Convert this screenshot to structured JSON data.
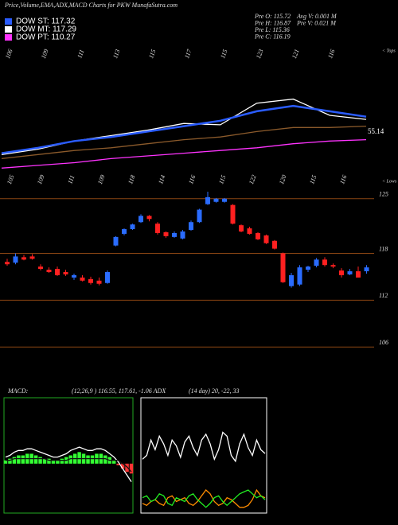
{
  "header": {
    "title": "Price,Volume,EMA,ADX,MACD Charts for PKW MunafaSutra.com",
    "legend": [
      {
        "label": "DOW ST: 117.32",
        "color": "#2a5cff"
      },
      {
        "label": "DOW MT: 117.29",
        "color": "#ffffff"
      },
      {
        "label": "DOW PT: 110.27",
        "color": "#ff33ff"
      }
    ],
    "info_left": [
      "Pre   O: 115.72",
      "Pre   H: 116.87",
      "Pre   L: 115.36",
      "Pre   C: 116.19"
    ],
    "info_right": [
      "Avg  V: 0.001 M",
      "Pre   V: 0.021 M"
    ]
  },
  "chart_data": [
    {
      "type": "line",
      "ylim": [
        0,
        100
      ],
      "series": [
        {
          "color": "#ff33ff",
          "values": [
            11,
            13,
            15,
            18,
            20,
            22,
            24,
            26,
            29,
            31,
            32
          ]
        },
        {
          "color": "#8b5a2b",
          "values": [
            18,
            21,
            24,
            26,
            29,
            32,
            34,
            38,
            41,
            41,
            42
          ]
        },
        {
          "color": "#ffffff",
          "values": [
            21,
            25,
            31,
            35,
            39,
            44,
            43,
            59,
            62,
            50,
            47
          ]
        },
        {
          "color": "#2a5cff",
          "values": [
            22,
            26,
            31,
            34,
            38,
            42,
            46,
            53,
            57,
            53,
            49
          ]
        }
      ],
      "top_labels": [
        106,
        109,
        111,
        113,
        115,
        117,
        115,
        123,
        121,
        116
      ],
      "bottom_labels": [
        105,
        109,
        111,
        109,
        118,
        114,
        116,
        115,
        122,
        120,
        115,
        116
      ],
      "tops_label": "< Tops",
      "lows_label": "< Lows",
      "annotation": "55.14"
    },
    {
      "type": "candlestick",
      "ylim": [
        105,
        126
      ],
      "yticks": [
        125,
        118,
        112,
        106
      ],
      "up_color": "#2a6cff",
      "down_color": "#ff2020",
      "grid_color": "#8b4513",
      "open": [
        116.9,
        116.8,
        117.5,
        117.6,
        116.3,
        115.9,
        116.0,
        115.6,
        114.9,
        114.9,
        114.7,
        114.5,
        114.2,
        119.0,
        120.5,
        121.1,
        122.0,
        122.8,
        121.8,
        120.7,
        120.1,
        119.9,
        121.0,
        122.0,
        124.3,
        124.6,
        124.6,
        124.2,
        121.6,
        121.2,
        120.6,
        120.3,
        119.6,
        118.0,
        113.8,
        114.0,
        115.9,
        116.4,
        117.2,
        116.5,
        115.8,
        115.3,
        115.7,
        115.7
      ],
      "high": [
        117.3,
        118.0,
        117.8,
        117.9,
        116.6,
        116.2,
        116.3,
        115.9,
        115.4,
        115.2,
        115.0,
        114.9,
        115.8,
        120.2,
        121.2,
        121.8,
        123.0,
        122.9,
        122.0,
        120.8,
        120.8,
        121.0,
        122.2,
        123.7,
        125.9,
        125.1,
        125.1,
        124.3,
        121.7,
        121.4,
        120.7,
        120.4,
        119.7,
        118.1,
        115.5,
        116.5,
        116.4,
        117.4,
        117.5,
        116.7,
        116.1,
        116.0,
        116.3,
        116.5
      ],
      "low": [
        116.4,
        116.6,
        117.1,
        117.2,
        115.8,
        115.5,
        115.1,
        115.1,
        114.6,
        114.4,
        114.0,
        113.9,
        114.1,
        118.9,
        120.3,
        121.0,
        121.9,
        122.1,
        120.4,
        120.0,
        120.0,
        119.8,
        120.9,
        121.9,
        124.2,
        124.5,
        124.5,
        121.7,
        120.7,
        120.4,
        119.7,
        119.2,
        118.5,
        114.2,
        113.6,
        113.8,
        115.6,
        116.2,
        116.3,
        116.1,
        114.9,
        115.2,
        114.9,
        115.4
      ],
      "close": [
        116.6,
        117.6,
        117.2,
        117.3,
        116.0,
        115.6,
        115.2,
        115.3,
        115.2,
        114.5,
        114.2,
        114.1,
        115.6,
        120.1,
        121.1,
        121.7,
        122.8,
        122.4,
        120.6,
        120.2,
        120.6,
        120.8,
        122.0,
        123.6,
        125.2,
        125.0,
        125.0,
        121.8,
        120.8,
        120.5,
        119.8,
        119.3,
        118.6,
        114.3,
        115.2,
        116.2,
        116.3,
        117.2,
        116.5,
        116.3,
        115.2,
        115.7,
        114.9,
        116.2
      ]
    },
    {
      "type": "macd",
      "title": "MACD:",
      "subtitle": "(12,26,9 ) 116.55, 117.61, -1.06 ADX",
      "ylim": [
        -3,
        4
      ],
      "frame_color": "#22aa22",
      "histogram": {
        "up_color": "#33ff33",
        "down_color": "#ff3333",
        "values": [
          0.2,
          0.3,
          0.4,
          0.5,
          0.5,
          0.6,
          0.6,
          0.5,
          0.4,
          0.3,
          0.3,
          0.2,
          0.2,
          0.3,
          0.4,
          0.5,
          0.6,
          0.7,
          0.6,
          0.5,
          0.5,
          0.6,
          0.6,
          0.5,
          0.4,
          0.2,
          -0.1,
          -0.3,
          -0.5,
          -0.6
        ]
      },
      "series": [
        {
          "color": "#ffffff",
          "values": [
            0.4,
            0.5,
            0.7,
            0.8,
            0.8,
            0.9,
            0.9,
            0.8,
            0.7,
            0.6,
            0.5,
            0.4,
            0.4,
            0.5,
            0.6,
            0.8,
            0.9,
            1.0,
            0.9,
            0.8,
            0.8,
            0.9,
            0.9,
            0.8,
            0.6,
            0.4,
            0.1,
            -0.3,
            -0.7,
            -1.1
          ]
        },
        {
          "color": "#111111",
          "values": [
            0.2,
            0.2,
            0.3,
            0.3,
            0.3,
            0.3,
            0.3,
            0.3,
            0.3,
            0.3,
            0.2,
            0.2,
            0.2,
            0.2,
            0.2,
            0.3,
            0.3,
            0.3,
            0.3,
            0.3,
            0.3,
            0.3,
            0.3,
            0.3,
            0.2,
            0.2,
            0.2,
            0,
            -0.2,
            -0.5
          ]
        }
      ]
    },
    {
      "type": "line",
      "title": "(14 day) 20, -22, 33",
      "ylim": [
        0,
        60
      ],
      "frame_color": "#ffffff",
      "series": [
        {
          "color": "#ffffff",
          "values": [
            28,
            30,
            38,
            33,
            40,
            36,
            30,
            38,
            35,
            29,
            37,
            40,
            34,
            30,
            38,
            41,
            36,
            28,
            33,
            42,
            40,
            30,
            27,
            36,
            41,
            34,
            30,
            38,
            33,
            31
          ]
        },
        {
          "color": "#ff8c00",
          "values": [
            5,
            4,
            6,
            7,
            5,
            4,
            8,
            9,
            6,
            7,
            8,
            5,
            4,
            6,
            9,
            12,
            10,
            6,
            4,
            5,
            8,
            7,
            5,
            3,
            3,
            4,
            7,
            12,
            9,
            8
          ]
        },
        {
          "color": "#22ee22",
          "values": [
            8,
            9,
            6,
            7,
            10,
            9,
            5,
            4,
            8,
            7,
            6,
            9,
            10,
            7,
            5,
            3,
            5,
            8,
            9,
            6,
            4,
            6,
            8,
            10,
            11,
            12,
            10,
            8,
            9,
            7
          ]
        }
      ]
    }
  ]
}
